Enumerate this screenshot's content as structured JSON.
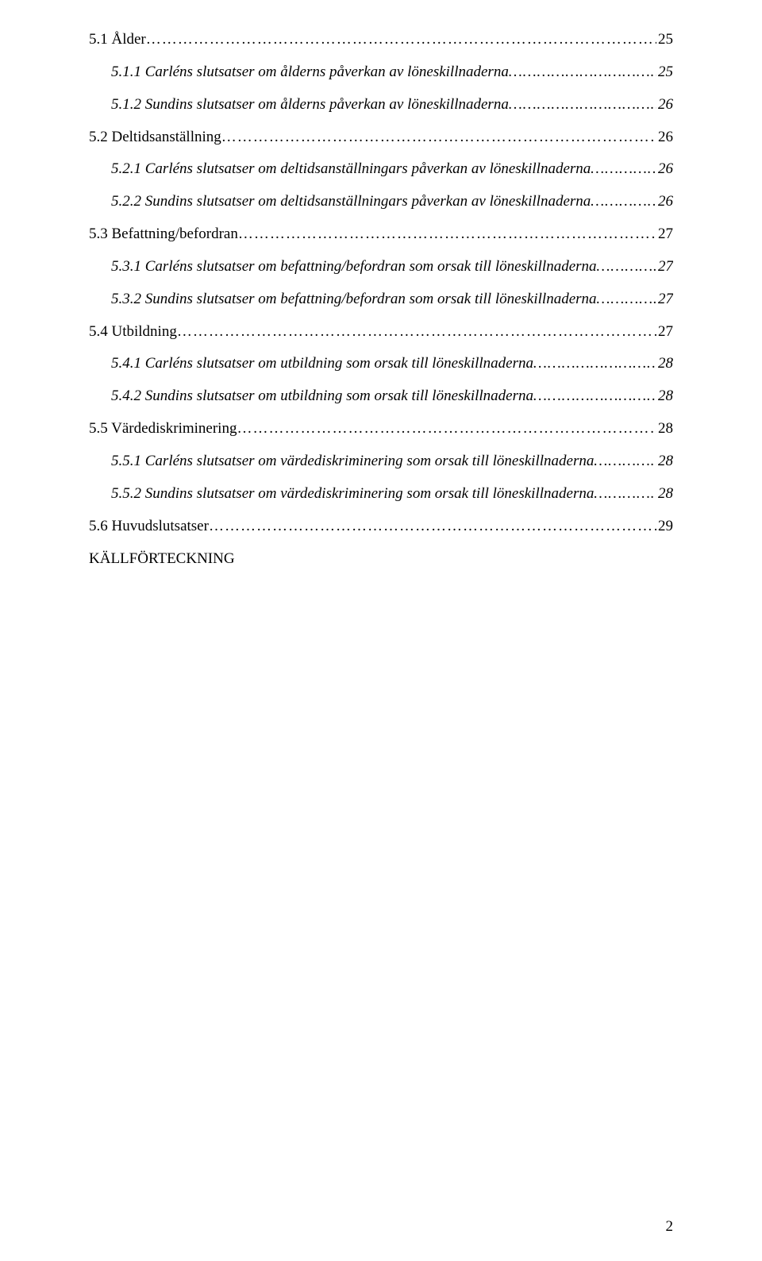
{
  "toc": [
    {
      "level": 1,
      "label": "5.1 Ålder",
      "page": "25"
    },
    {
      "level": 2,
      "label": "5.1.1 Carléns slutsatser om ålderns påverkan av löneskillnaderna",
      "page": "25"
    },
    {
      "level": 2,
      "label": "5.1.2 Sundins slutsatser om ålderns påverkan av löneskillnaderna",
      "page": "26"
    },
    {
      "level": 1,
      "label": "5.2 Deltidsanställning",
      "page": "26"
    },
    {
      "level": 2,
      "label": "5.2.1 Carléns slutsatser om deltidsanställningars påverkan av löneskillnaderna",
      "page": "26"
    },
    {
      "level": 2,
      "label": "5.2.2 Sundins slutsatser om deltidsanställningars påverkan av löneskillnaderna",
      "page": "26"
    },
    {
      "level": 1,
      "label": "5.3 Befattning/befordran",
      "page": "27"
    },
    {
      "level": 2,
      "label": "5.3.1 Carléns slutsatser om befattning/befordran som orsak till löneskillnaderna",
      "page": "27"
    },
    {
      "level": 2,
      "label": "5.3.2 Sundins slutsatser om befattning/befordran som orsak till löneskillnaderna",
      "page": "27"
    },
    {
      "level": 1,
      "label": "5.4 Utbildning",
      "page": "27"
    },
    {
      "level": 2,
      "label": "5.4.1 Carléns slutsatser om utbildning som orsak till löneskillnaderna",
      "page": "28"
    },
    {
      "level": 2,
      "label": "5.4.2 Sundins slutsatser om utbildning som orsak till löneskillnaderna",
      "page": "28"
    },
    {
      "level": 1,
      "label": "5.5 Värdediskriminering",
      "page": "28"
    },
    {
      "level": 2,
      "label": "5.5.1 Carléns slutsatser om värdediskriminering som orsak till löneskillnaderna",
      "page": "28"
    },
    {
      "level": 2,
      "label": "5.5.2 Sundins slutsatser om värdediskriminering som orsak till löneskillnaderna",
      "page": "28"
    },
    {
      "level": 1,
      "label": "5.6 Huvudslutsatser",
      "page": "29"
    }
  ],
  "sources_label": "KÄLLFÖRTECKNING",
  "page_number": "2",
  "dot_fill": "……………………………………………………………………………………………………………………………………………………………………"
}
